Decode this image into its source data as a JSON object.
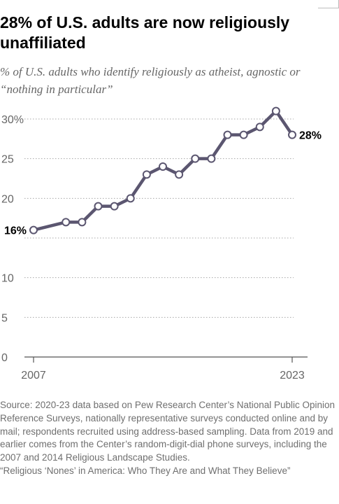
{
  "title": "28% of U.S. adults are now religiously unaffiliated",
  "subtitle": "% of U.S. adults who identify religiously as atheist, agnostic or “nothing in particular”",
  "source_text": "Source: 2020-23 data based on Pew Research Center’s National Public Opinion Reference Surveys, nationally representative surveys conducted online and by mail; respondents recruited using address-based sampling. Data from 2019 and earlier comes from the Center’s random-digit-dial phone surveys, including the 2007 and 2014 Religious Landscape Studies.",
  "report_title": "“Religious ‘Nones’ in America: Who They Are and What They Believe”",
  "colors": {
    "line": "#5b5670",
    "grid": "#a6a6a6",
    "axis": "#555555",
    "tick_text": "#666666",
    "label_text": "#000000"
  },
  "chart_data": {
    "type": "line",
    "title": "28% of U.S. adults are now religiously unaffiliated",
    "subtitle": "% of U.S. adults who identify religiously as atheist, agnostic or “nothing in particular”",
    "x_tick_labels": [
      "2007",
      "2023"
    ],
    "x_domain": [
      2007,
      2023
    ],
    "y_ticks": [
      0,
      5,
      10,
      15,
      20,
      25,
      30
    ],
    "y_tick_labels": [
      "0",
      "5",
      "10",
      "",
      "20",
      "25",
      "30%"
    ],
    "ylim": [
      0,
      30
    ],
    "grid": true,
    "series": [
      {
        "x": [
          2007,
          2009,
          2010,
          2011,
          2012,
          2013,
          2014,
          2015,
          2016,
          2017,
          2018,
          2019,
          2020,
          2021,
          2022,
          2023
        ],
        "values": [
          16,
          17,
          17,
          19,
          19,
          20,
          23,
          24,
          23,
          25,
          25,
          28,
          28,
          29,
          31,
          28
        ]
      }
    ],
    "data_labels": [
      {
        "text": "16%",
        "point_index": 0,
        "side": "left"
      },
      {
        "text": "28%",
        "point_index": 15,
        "side": "right"
      }
    ]
  }
}
